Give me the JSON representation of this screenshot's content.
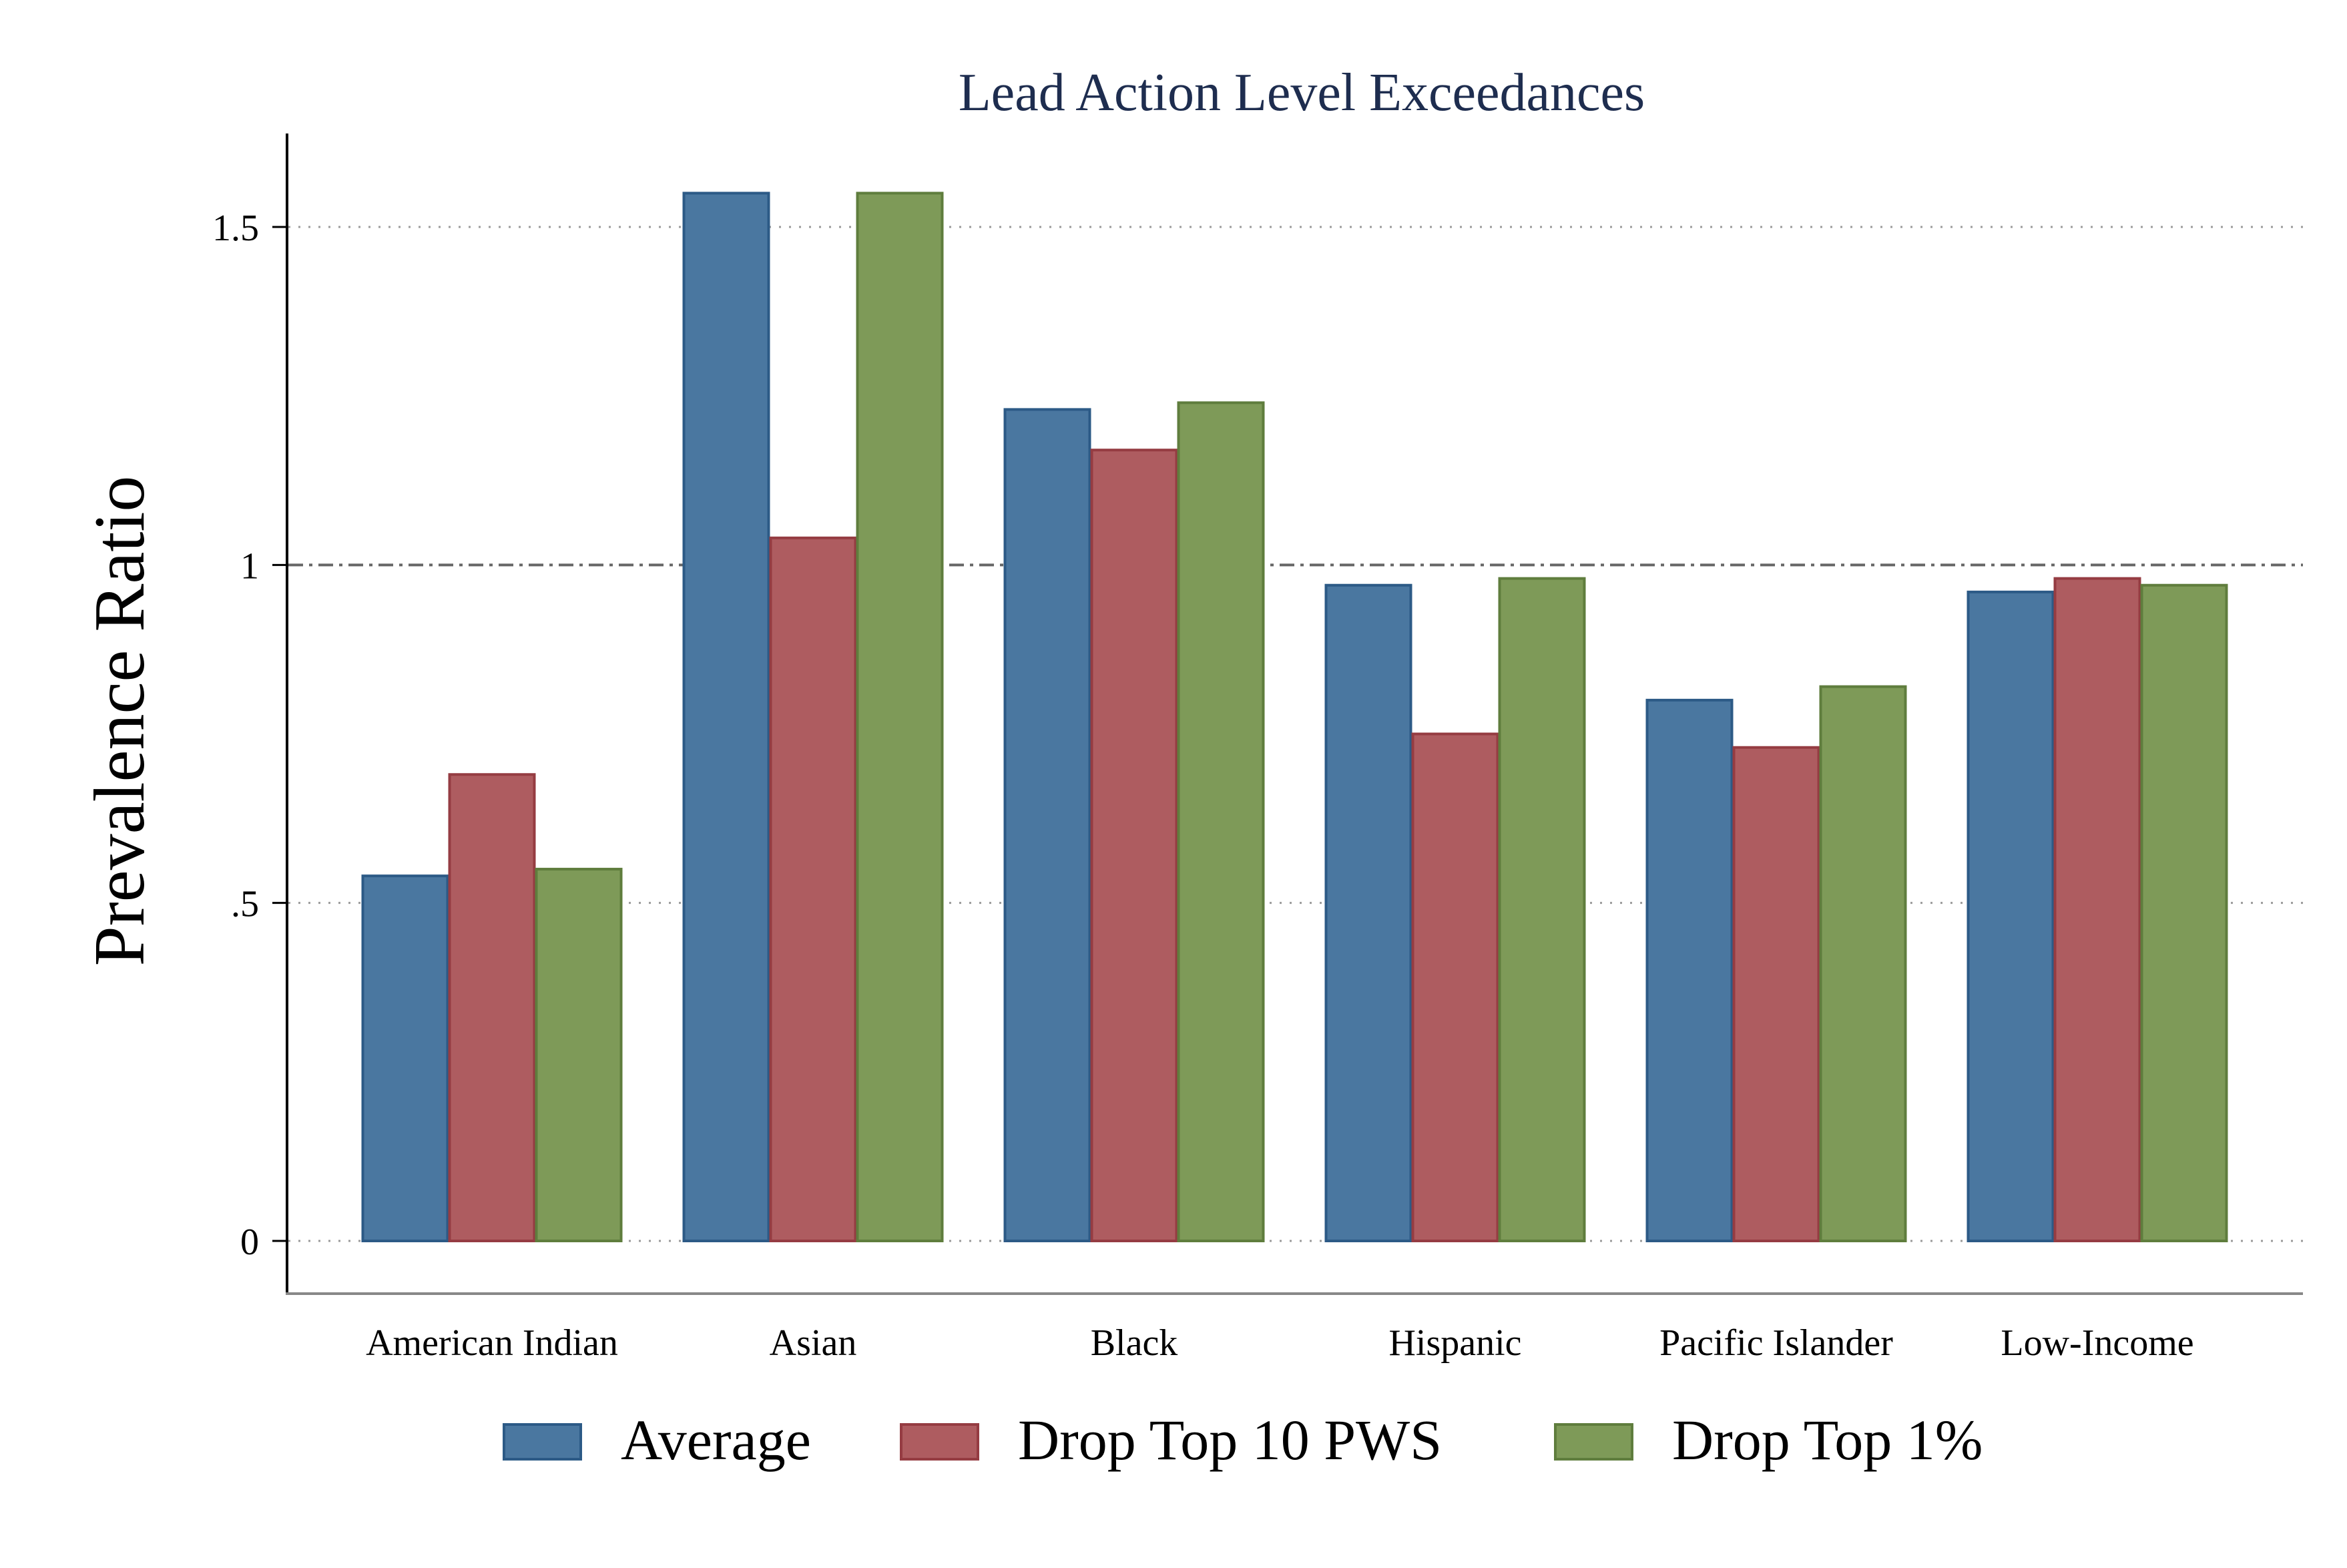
{
  "chart_data": {
    "type": "bar",
    "title": "Lead Action Level Exceedances",
    "xlabel": "",
    "ylabel": "Prevalence Ratio",
    "categories": [
      "American Indian",
      "Asian",
      "Black",
      "Hispanic",
      "Pacific Islander",
      "Low-Income"
    ],
    "series": [
      {
        "name": "Average",
        "values": [
          0.54,
          1.55,
          1.23,
          0.97,
          0.8,
          0.96
        ],
        "color": "#4a77a0",
        "stroke": "#2c5a86"
      },
      {
        "name": "Drop Top 10 PWS",
        "values": [
          0.69,
          1.04,
          1.17,
          0.75,
          0.73,
          0.98
        ],
        "color": "#ae5c60",
        "stroke": "#953c42"
      },
      {
        "name": "Drop Top 1%",
        "values": [
          0.55,
          1.55,
          1.24,
          0.98,
          0.82,
          0.97
        ],
        "color": "#7e9a58",
        "stroke": "#5f7d3d"
      }
    ],
    "yticks": [
      {
        "value": 0,
        "label": "0"
      },
      {
        "value": 0.5,
        "label": ".5"
      },
      {
        "value": 1,
        "label": "1"
      },
      {
        "value": 1.5,
        "label": "1.5"
      }
    ],
    "ylim": [
      -0.08,
      1.63
    ],
    "reference_line": 1,
    "grid": true,
    "legend_position": "bottom",
    "colors": {
      "title": "#1e2d4f",
      "axis": "#000000",
      "grid": "#9a9a9a",
      "refline": "#666666"
    }
  }
}
